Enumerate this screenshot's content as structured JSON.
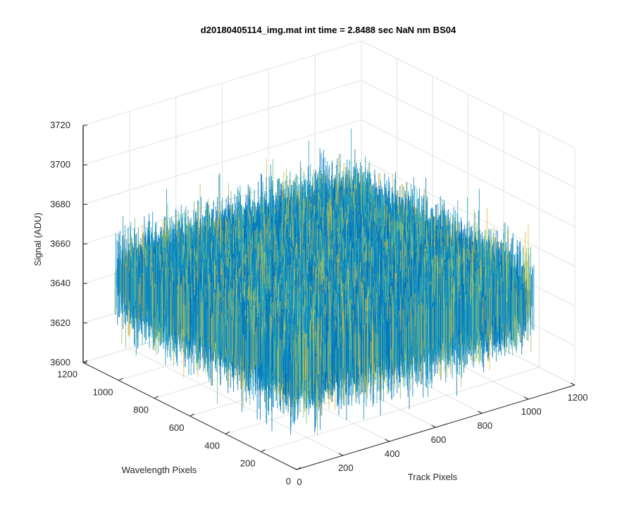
{
  "chart_data": {
    "type": "surface",
    "title": "d20180405114_img.mat int time = 2.8488 sec  NaN nm BS04",
    "xlabel": "Track Pixels",
    "ylabel": "Wavelength Pixels",
    "zlabel": "Signal (ADU)",
    "xlim": [
      0,
      1200
    ],
    "ylim": [
      0,
      1200
    ],
    "zlim": [
      3600,
      3720
    ],
    "x_ticks": [
      0,
      200,
      400,
      600,
      800,
      1000,
      1200
    ],
    "y_ticks": [
      0,
      200,
      400,
      600,
      800,
      1000,
      1200
    ],
    "z_ticks": [
      3600,
      3620,
      3640,
      3660,
      3680,
      3700,
      3720
    ],
    "x_tick_labels": [
      "0",
      "200",
      "400",
      "600",
      "800",
      "1000",
      "1200"
    ],
    "y_tick_labels": [
      "0",
      "200",
      "400",
      "600",
      "800",
      "1000",
      "1200"
    ],
    "z_tick_labels": [
      "3600",
      "3620",
      "3640",
      "3660",
      "3680",
      "3700",
      "3720"
    ],
    "data_extent": {
      "x": [
        1,
        1024
      ],
      "y": [
        1,
        1024
      ]
    },
    "mean_signal": 3650,
    "signal_range": [
      3600,
      3710
    ],
    "colormap": [
      "#0072bd",
      "#1192c8",
      "#2aa9b9",
      "#6cbc8a",
      "#a8c25c",
      "#e0b93a"
    ],
    "grid": true,
    "view": "3d"
  }
}
